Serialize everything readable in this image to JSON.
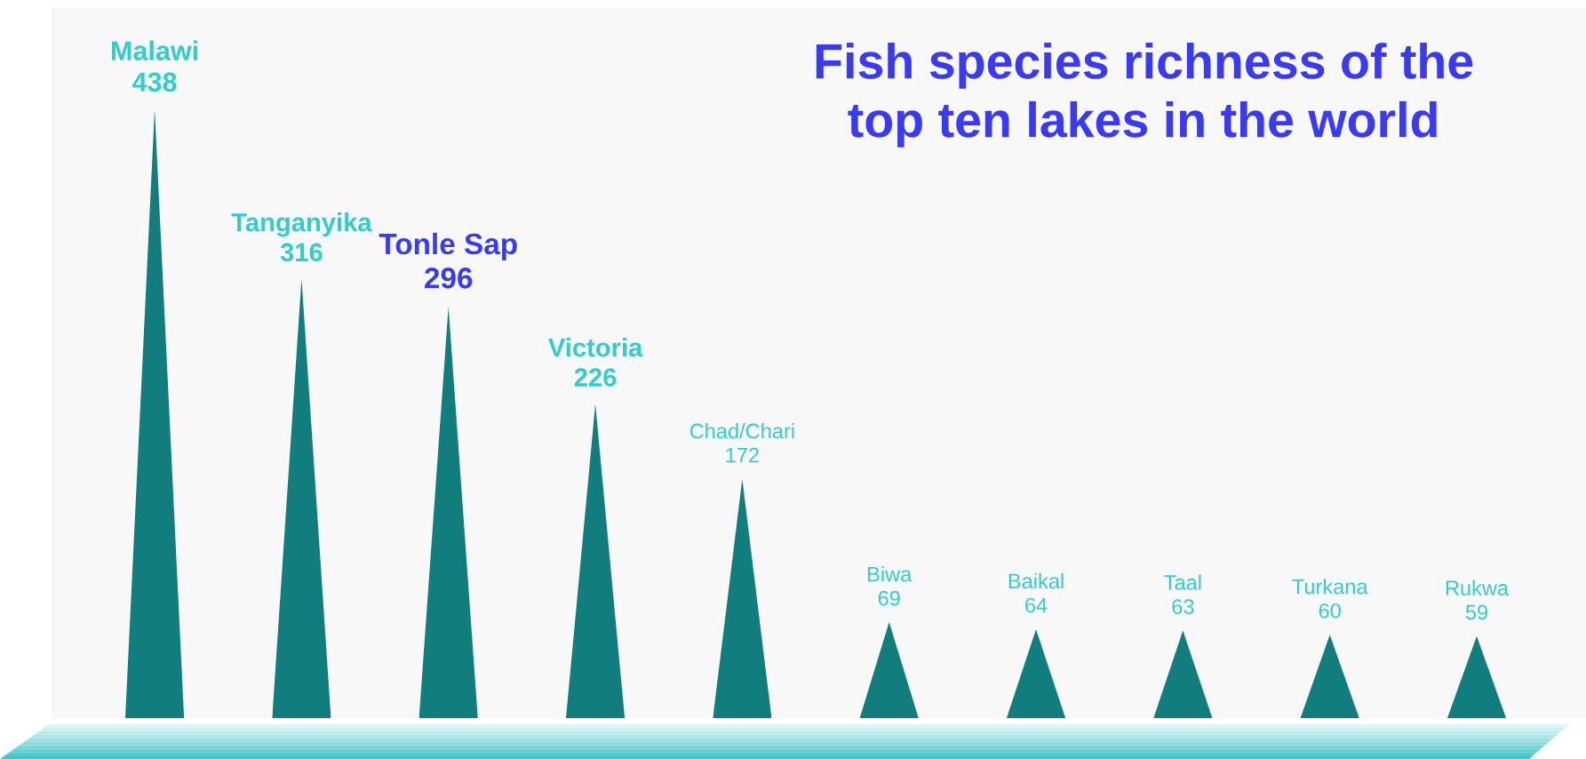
{
  "chart_data": {
    "type": "bar",
    "title": "Fish species richness of the\ntop ten lakes in the world",
    "categories": [
      null,
      null,
      null,
      null,
      null,
      null,
      null,
      null,
      null,
      null
    ],
    "values": [
      438,
      316,
      296,
      226,
      172,
      69,
      64,
      63,
      60,
      59
    ],
    "value_labels": [
      "Malawi\n438",
      "Tanganyika\n316",
      "Tonle Sap\n296",
      "Victoria\n226",
      "Chad/Chari\n172",
      "Biwa\n69",
      "Baikal\n64",
      "Taal\n63",
      "Turkana\n60",
      "Rukwa\n59"
    ],
    "color": "#117d7c",
    "tick_labels": false
  }
}
